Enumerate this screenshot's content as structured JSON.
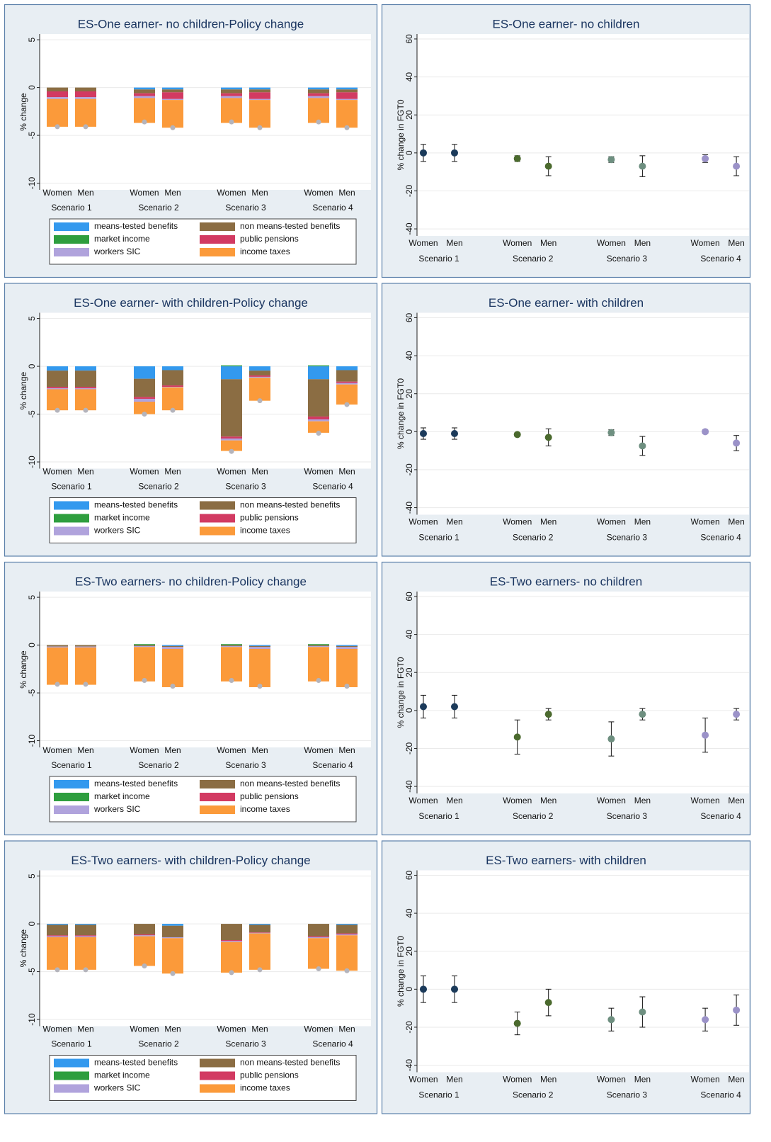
{
  "chart_data": [
    {
      "type": "stacked_bar",
      "title": "ES-One earner- no children-Policy change",
      "ylabel": "% change",
      "categories": [
        "Women",
        "Men",
        "Women",
        "Men",
        "Women",
        "Men",
        "Women",
        "Men"
      ],
      "groups": [
        "Scenario 1",
        "Scenario 2",
        "Scenario 3",
        "Scenario 4"
      ],
      "ylim": [
        -10.7,
        5.6
      ],
      "yticks": [
        -10,
        -5,
        0,
        5
      ],
      "grid": true,
      "series": [
        {
          "name": "means-tested benefits",
          "color": "#3399ee",
          "values": [
            0,
            0,
            -0.2,
            -0.2,
            -0.2,
            -0.2,
            -0.2,
            -0.2
          ]
        },
        {
          "name": "non means-tested benefits",
          "color": "#8b6d43",
          "values": [
            -0.4,
            -0.4,
            -0.4,
            -0.3,
            -0.4,
            -0.3,
            -0.4,
            -0.3
          ]
        },
        {
          "name": "market income",
          "color": "#2e9e3e",
          "values": [
            0,
            0,
            0,
            0,
            0,
            0,
            0,
            0
          ]
        },
        {
          "name": "public pensions",
          "color": "#d23a62",
          "values": [
            -0.6,
            -0.6,
            -0.3,
            -0.7,
            -0.3,
            -0.7,
            -0.3,
            -0.7
          ]
        },
        {
          "name": "workers SIC",
          "color": "#b0a3dc",
          "values": [
            -0.2,
            -0.2,
            -0.2,
            -0.1,
            -0.2,
            -0.1,
            -0.2,
            -0.1
          ]
        },
        {
          "name": "income taxes",
          "color": "#fb9a3a",
          "values": [
            -2.9,
            -2.9,
            -2.6,
            -2.9,
            -2.6,
            -2.9,
            -2.6,
            -2.9
          ]
        }
      ],
      "markers": {
        "color": "#b4b4bc",
        "values": [
          -4.1,
          -4.1,
          -3.6,
          -4.2,
          -3.6,
          -4.2,
          -3.6,
          -4.2
        ]
      }
    },
    {
      "type": "errorbar",
      "title": "ES-One earner- no children",
      "ylabel": "% change in FGT0",
      "categories": [
        "Women",
        "Men",
        "Women",
        "Men",
        "Women",
        "Men",
        "Women",
        "Men"
      ],
      "groups": [
        "Scenario 1",
        "Scenario 2",
        "Scenario 3",
        "Scenario 4"
      ],
      "ylim": [
        -43.7,
        62.6
      ],
      "yticks": [
        -40,
        -20,
        0,
        20,
        40,
        60
      ],
      "grid": true,
      "colors": [
        "#1b3a5a",
        "#4b6a2e",
        "#6e8f80",
        "#9b92c8"
      ],
      "values": [
        0,
        0,
        -3,
        -7,
        -3.5,
        -7,
        -3,
        -7
      ],
      "errors": [
        4.5,
        4.5,
        1.5,
        5,
        1.5,
        5.5,
        2,
        5
      ]
    },
    {
      "type": "stacked_bar",
      "title": "ES-One earner- with children-Policy change",
      "ylabel": "% change",
      "categories": [
        "Women",
        "Men",
        "Women",
        "Men",
        "Women",
        "Men",
        "Women",
        "Men"
      ],
      "groups": [
        "Scenario 1",
        "Scenario 2",
        "Scenario 3",
        "Scenario 4"
      ],
      "ylim": [
        -10.7,
        5.6
      ],
      "yticks": [
        -10,
        -5,
        0,
        5
      ],
      "grid": true,
      "series": [
        {
          "name": "means-tested benefits",
          "color": "#3399ee",
          "values": [
            -0.45,
            -0.45,
            -1.3,
            -0.4,
            -1.35,
            -0.45,
            -1.35,
            -0.4
          ]
        },
        {
          "name": "non means-tested benefits",
          "color": "#8b6d43",
          "values": [
            -1.7,
            -1.7,
            -1.9,
            -1.6,
            -6.0,
            -0.5,
            -3.9,
            -1.2
          ]
        },
        {
          "name": "market income",
          "color": "#2e9e3e",
          "values": [
            0,
            0,
            0,
            0,
            0.1,
            0,
            0.1,
            0
          ]
        },
        {
          "name": "public pensions",
          "color": "#d23a62",
          "values": [
            -0.15,
            -0.15,
            -0.2,
            -0.15,
            -0.2,
            -0.15,
            -0.3,
            -0.15
          ]
        },
        {
          "name": "workers SIC",
          "color": "#b0a3dc",
          "values": [
            -0.1,
            -0.1,
            -0.3,
            -0.05,
            -0.2,
            -0.1,
            -0.2,
            -0.15
          ]
        },
        {
          "name": "income taxes",
          "color": "#fb9a3a",
          "values": [
            -2.2,
            -2.2,
            -1.3,
            -2.4,
            -1.1,
            -2.4,
            -1.2,
            -2.1
          ]
        }
      ],
      "markers": {
        "color": "#b4b4bc",
        "values": [
          -4.6,
          -4.6,
          -5.0,
          -4.6,
          -8.9,
          -3.6,
          -7.0,
          -4.0
        ]
      }
    },
    {
      "type": "errorbar",
      "title": "ES-One earner- with children",
      "ylabel": "% change in FGT0",
      "categories": [
        "Women",
        "Men",
        "Women",
        "Men",
        "Women",
        "Men",
        "Women",
        "Men"
      ],
      "groups": [
        "Scenario 1",
        "Scenario 2",
        "Scenario 3",
        "Scenario 4"
      ],
      "ylim": [
        -43.7,
        62.6
      ],
      "yticks": [
        -40,
        -20,
        0,
        20,
        40,
        60
      ],
      "grid": true,
      "colors": [
        "#1b3a5a",
        "#4b6a2e",
        "#6e8f80",
        "#9b92c8"
      ],
      "values": [
        -1,
        -1,
        -1.5,
        -3,
        -0.5,
        -7.5,
        0,
        -6
      ],
      "errors": [
        3,
        3,
        1,
        4.5,
        1.5,
        5,
        1,
        4
      ]
    },
    {
      "type": "stacked_bar",
      "title": "ES-Two earners- no children-Policy change",
      "ylabel": "% change",
      "categories": [
        "Women",
        "Men",
        "Women",
        "Men",
        "Women",
        "Men",
        "Women",
        "Men"
      ],
      "groups": [
        "Scenario 1",
        "Scenario 2",
        "Scenario 3",
        "Scenario 4"
      ],
      "ylim": [
        -10.7,
        5.6
      ],
      "yticks": [
        -10,
        -5,
        0,
        5
      ],
      "grid": true,
      "series": [
        {
          "name": "means-tested benefits",
          "color": "#3399ee",
          "values": [
            0,
            0,
            0,
            -0.1,
            0,
            -0.1,
            0,
            -0.1
          ]
        },
        {
          "name": "non means-tested benefits",
          "color": "#8b6d43",
          "values": [
            -0.15,
            -0.15,
            -0.1,
            -0.1,
            -0.1,
            -0.1,
            -0.1,
            -0.1
          ]
        },
        {
          "name": "market income",
          "color": "#2e9e3e",
          "values": [
            0,
            0,
            0.1,
            0,
            0.1,
            0,
            0.1,
            0
          ]
        },
        {
          "name": "public pensions",
          "color": "#d23a62",
          "values": [
            0,
            0,
            0,
            0,
            0,
            0,
            0,
            0
          ]
        },
        {
          "name": "workers SIC",
          "color": "#b0a3dc",
          "values": [
            -0.1,
            -0.1,
            -0.1,
            -0.2,
            -0.1,
            -0.2,
            -0.1,
            -0.2
          ]
        },
        {
          "name": "income taxes",
          "color": "#fb9a3a",
          "values": [
            -3.9,
            -3.9,
            -3.6,
            -4.0,
            -3.6,
            -4.0,
            -3.6,
            -4.0
          ]
        }
      ],
      "markers": {
        "color": "#b4b4bc",
        "values": [
          -4.1,
          -4.1,
          -3.7,
          -4.3,
          -3.7,
          -4.3,
          -3.7,
          -4.3
        ]
      }
    },
    {
      "type": "errorbar",
      "title": "ES-Two earners- no children",
      "ylabel": "% change in FGT0",
      "categories": [
        "Women",
        "Men",
        "Women",
        "Men",
        "Women",
        "Men",
        "Women",
        "Men"
      ],
      "groups": [
        "Scenario 1",
        "Scenario 2",
        "Scenario 3",
        "Scenario 4"
      ],
      "ylim": [
        -43.7,
        62.6
      ],
      "yticks": [
        -40,
        -20,
        0,
        20,
        40,
        60
      ],
      "grid": true,
      "colors": [
        "#1b3a5a",
        "#4b6a2e",
        "#6e8f80",
        "#9b92c8"
      ],
      "values": [
        2,
        2,
        -14,
        -2,
        -15,
        -2,
        -13,
        -2
      ],
      "errors": [
        6,
        6,
        9,
        3,
        9,
        3,
        9,
        3
      ]
    },
    {
      "type": "stacked_bar",
      "title": "ES-Two earners- with children-Policy change",
      "ylabel": "% change",
      "categories": [
        "Women",
        "Men",
        "Women",
        "Men",
        "Women",
        "Men",
        "Women",
        "Men"
      ],
      "groups": [
        "Scenario 1",
        "Scenario 2",
        "Scenario 3",
        "Scenario 4"
      ],
      "ylim": [
        -10.7,
        5.6
      ],
      "yticks": [
        -10,
        -5,
        0,
        5
      ],
      "grid": true,
      "series": [
        {
          "name": "means-tested benefits",
          "color": "#3399ee",
          "values": [
            -0.1,
            -0.1,
            0,
            -0.2,
            0,
            -0.1,
            0,
            -0.1
          ]
        },
        {
          "name": "non means-tested benefits",
          "color": "#8b6d43",
          "values": [
            -1.1,
            -1.1,
            -1.1,
            -1.2,
            -1.7,
            -0.8,
            -1.3,
            -0.9
          ]
        },
        {
          "name": "market income",
          "color": "#2e9e3e",
          "values": [
            0,
            0,
            0,
            0,
            0,
            0,
            0,
            0
          ]
        },
        {
          "name": "public pensions",
          "color": "#d23a62",
          "values": [
            -0.1,
            -0.1,
            -0.1,
            0,
            -0.1,
            -0.05,
            -0.1,
            -0.1
          ]
        },
        {
          "name": "workers SIC",
          "color": "#b0a3dc",
          "values": [
            -0.1,
            -0.1,
            -0.1,
            -0.1,
            -0.1,
            -0.05,
            -0.1,
            -0.1
          ]
        },
        {
          "name": "income taxes",
          "color": "#fb9a3a",
          "values": [
            -3.4,
            -3.4,
            -3.1,
            -3.7,
            -3.2,
            -3.8,
            -3.2,
            -3.7
          ]
        }
      ],
      "markers": {
        "color": "#b4b4bc",
        "values": [
          -4.8,
          -4.8,
          -4.4,
          -5.2,
          -5.1,
          -4.8,
          -4.7,
          -4.9
        ]
      }
    },
    {
      "type": "errorbar",
      "title": "ES-Two earners- with children",
      "ylabel": "% change in FGT0",
      "categories": [
        "Women",
        "Men",
        "Women",
        "Men",
        "Women",
        "Men",
        "Women",
        "Men"
      ],
      "groups": [
        "Scenario 1",
        "Scenario 2",
        "Scenario 3",
        "Scenario 4"
      ],
      "ylim": [
        -43.7,
        62.6
      ],
      "yticks": [
        -40,
        -20,
        0,
        20,
        40,
        60
      ],
      "grid": true,
      "colors": [
        "#1b3a5a",
        "#4b6a2e",
        "#6e8f80",
        "#9b92c8"
      ],
      "values": [
        0,
        0,
        -18,
        -7,
        -16,
        -12,
        -16,
        -11
      ],
      "errors": [
        7,
        7,
        6,
        7,
        6,
        8,
        6,
        8
      ]
    }
  ]
}
